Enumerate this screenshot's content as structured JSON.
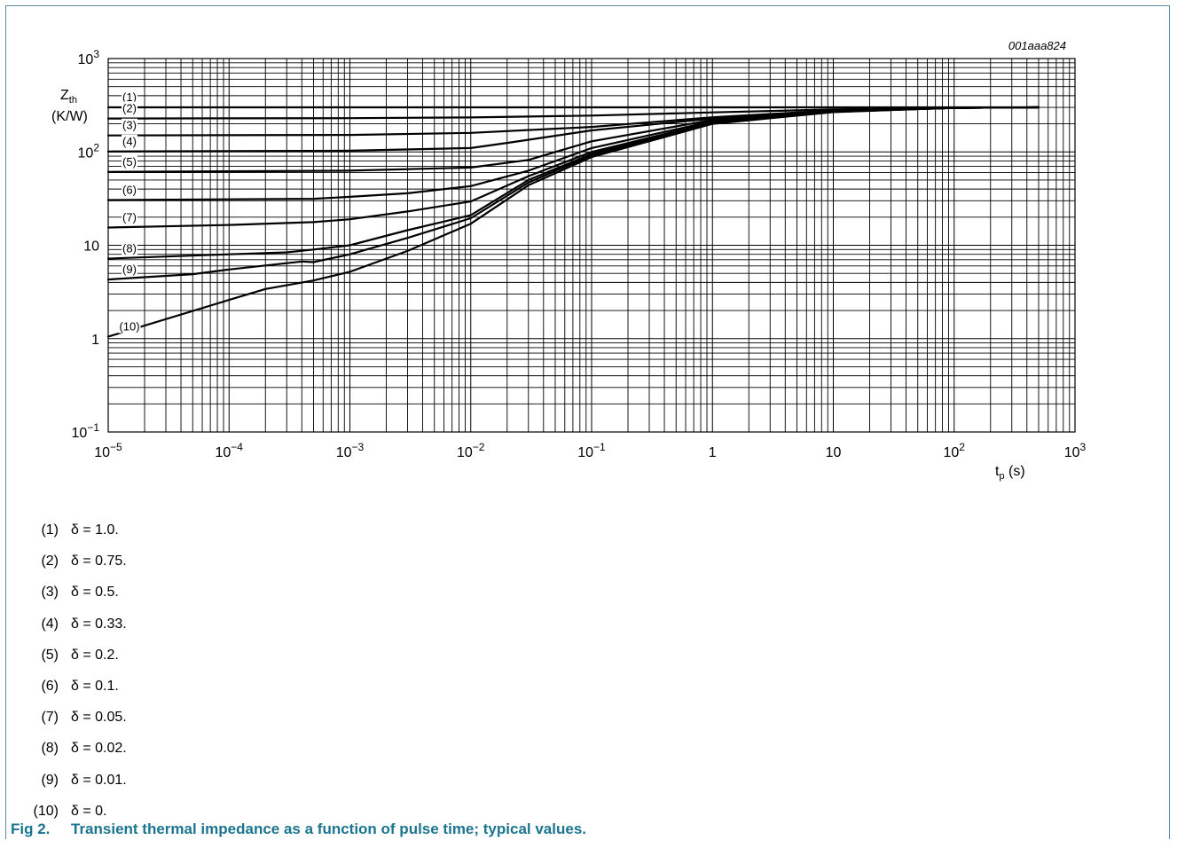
{
  "colors": {
    "frame": "#5b8fa8",
    "caption": "#1c7590",
    "grid": "#000000",
    "curve": "#000000"
  },
  "chart_data": {
    "type": "line",
    "figure_code": "001aaa824",
    "xscale": "log",
    "yscale": "log",
    "xlim": [
      1e-05,
      1000
    ],
    "ylim": [
      0.1,
      1000
    ],
    "grid": true,
    "xticks": [
      {
        "b": "10",
        "e": "−5"
      },
      {
        "b": "10",
        "e": "−4"
      },
      {
        "b": "10",
        "e": "−3"
      },
      {
        "b": "10",
        "e": "−2"
      },
      {
        "b": "10",
        "e": "−1"
      },
      {
        "b": "1",
        "e": ""
      },
      {
        "b": "10",
        "e": ""
      },
      {
        "b": "10",
        "e": "2"
      },
      {
        "b": "10",
        "e": "3"
      }
    ],
    "yticks": [
      {
        "b": "10",
        "e": "−1"
      },
      {
        "b": "1",
        "e": ""
      },
      {
        "b": "10",
        "e": ""
      },
      {
        "b": "10",
        "e": "2"
      },
      {
        "b": "10",
        "e": "3"
      }
    ],
    "xlabel": {
      "main": "t",
      "sub": "p",
      "rest": " (s)"
    },
    "ylabel": {
      "main": "Z",
      "sub": "th",
      "unit": "(K/W)"
    },
    "series": [
      {
        "name": "(1)",
        "x": [
          1e-05,
          0.001,
          0.1,
          10,
          500
        ],
        "y": [
          300,
          300,
          300,
          300,
          300
        ]
      },
      {
        "name": "(2)",
        "x": [
          1e-05,
          0.001,
          0.01,
          0.1,
          1,
          10,
          100,
          500
        ],
        "y": [
          228,
          230,
          234,
          245,
          265,
          285,
          297,
          300
        ]
      },
      {
        "name": "(3)",
        "x": [
          1e-05,
          0.001,
          0.01,
          0.1,
          1,
          10,
          100,
          500
        ],
        "y": [
          150,
          152,
          160,
          185,
          235,
          278,
          296,
          300
        ]
      },
      {
        "name": "(4)",
        "x": [
          1e-05,
          0.001,
          0.01,
          0.02,
          0.1,
          1,
          10,
          100,
          500
        ],
        "y": [
          101,
          103,
          110,
          125,
          170,
          228,
          275,
          296,
          300
        ]
      },
      {
        "name": "(5)",
        "x": [
          1e-05,
          0.001,
          0.01,
          0.03,
          0.1,
          1,
          10,
          100,
          500
        ],
        "y": [
          61,
          63,
          68,
          82,
          130,
          220,
          273,
          296,
          300
        ]
      },
      {
        "name": "(6)",
        "x": [
          1e-05,
          0.0005,
          0.001,
          0.003,
          0.01,
          0.03,
          0.1,
          1,
          10,
          100,
          500
        ],
        "y": [
          30.5,
          31.5,
          33,
          36,
          43,
          63,
          110,
          213,
          272,
          296,
          300
        ]
      },
      {
        "name": "(7)",
        "x": [
          1e-05,
          0.0001,
          0.0005,
          0.001,
          0.003,
          0.01,
          0.03,
          0.1,
          1,
          10,
          100,
          500
        ],
        "y": [
          15.5,
          16.5,
          17.7,
          19,
          23,
          29.5,
          55,
          100,
          208,
          270,
          296,
          300
        ]
      },
      {
        "name": "(8)",
        "x": [
          1e-05,
          0.0001,
          0.0003,
          0.0005,
          0.001,
          0.003,
          0.01,
          0.03,
          0.1,
          1,
          10,
          100,
          500
        ],
        "y": [
          7.2,
          8,
          8.4,
          9,
          10,
          14.5,
          21,
          50,
          95,
          205,
          269,
          296,
          300
        ]
      },
      {
        "name": "(9)",
        "x": [
          1e-05,
          5e-05,
          0.0001,
          0.0004,
          0.0005,
          0.001,
          0.003,
          0.01,
          0.03,
          0.1,
          1,
          10,
          100,
          500
        ],
        "y": [
          4.3,
          4.9,
          5.5,
          6.7,
          6.6,
          8,
          12,
          19.5,
          47,
          92,
          202,
          268,
          296,
          300
        ]
      },
      {
        "name": "(10)",
        "x": [
          1e-05,
          0.0001,
          0.0002,
          0.0005,
          0.001,
          0.003,
          0.01,
          0.03,
          0.1,
          1,
          10,
          100,
          500
        ],
        "y": [
          1.05,
          2.6,
          3.4,
          4.2,
          5.2,
          8.7,
          17,
          44,
          88,
          200,
          267,
          296,
          300
        ]
      }
    ]
  },
  "legend": [
    {
      "num": "(1)",
      "text": "δ = 1.0."
    },
    {
      "num": "(2)",
      "text": "δ = 0.75."
    },
    {
      "num": "(3)",
      "text": "δ = 0.5."
    },
    {
      "num": "(4)",
      "text": "δ = 0.33."
    },
    {
      "num": "(5)",
      "text": "δ = 0.2."
    },
    {
      "num": "(6)",
      "text": "δ = 0.1."
    },
    {
      "num": "(7)",
      "text": "δ = 0.05."
    },
    {
      "num": "(8)",
      "text": "δ = 0.02."
    },
    {
      "num": "(9)",
      "text": "δ = 0.01."
    },
    {
      "num": "(10)",
      "text": "δ = 0."
    }
  ],
  "caption": {
    "number": "Fig 2.",
    "text": "Transient thermal impedance as a function of pulse time; typical values."
  }
}
